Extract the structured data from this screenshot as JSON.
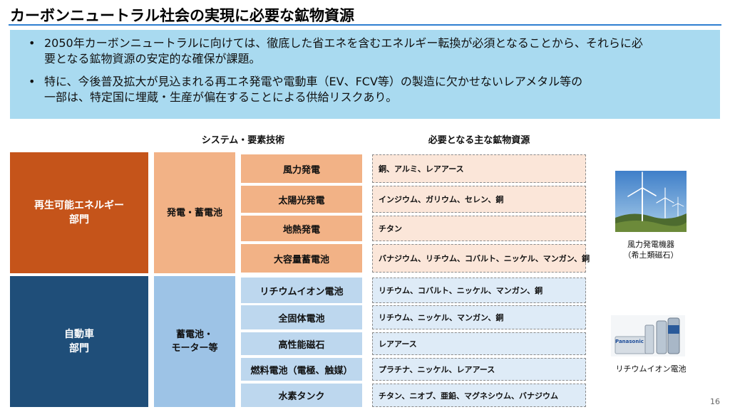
{
  "title": "カーボンニュートラル社会の実現に必要な鉱物資源",
  "bullets": [
    {
      "line1": "2050年カーボンニュートラルに向けては、徹底した省エネを含むエネルギー転換が必須となることから、それらに必",
      "line2": "要となる鉱物資源の安定的な確保が課題。"
    },
    {
      "line1": "特に、今後普及拡大が見込まれる再エネ発電や電動車（EV、FCV等）の製造に欠かせないレアメタル等の",
      "line2": "一部は、特定国に埋蔵・生産が偏在することによる供給リスクあり。"
    }
  ],
  "headers": {
    "system": "システム・要素技術",
    "minerals": "必要となる主な鉱物資源"
  },
  "sectors": {
    "renewable": {
      "line1": "再生可能エネルギー",
      "line2": "部門"
    },
    "automotive": {
      "line1": "自動車",
      "line2": "部門"
    }
  },
  "systems": {
    "renewable": {
      "line1": "発電・蓄電池"
    },
    "automotive": {
      "line1": "蓄電池・",
      "line2": "モーター等"
    }
  },
  "rows": [
    {
      "tech": "風力発電",
      "minerals": "銅、アルミ、レアアース"
    },
    {
      "tech": "太陽光発電",
      "minerals": "インジウム、ガリウム、セレン、銅"
    },
    {
      "tech": "地熱発電",
      "minerals": "チタン"
    },
    {
      "tech": "大容量蓄電池",
      "minerals": "バナジウム、リチウム、コバルト、ニッケル、マンガン、銅"
    },
    {
      "tech": "リチウムイオン電池",
      "minerals": "リチウム、コバルト、ニッケル、マンガン、銅"
    },
    {
      "tech": "全固体電池",
      "minerals": "リチウム、ニッケル、マンガン、銅"
    },
    {
      "tech": "高性能磁石",
      "minerals": "レアアース"
    },
    {
      "tech": "燃料電池（電極、触媒）",
      "minerals": "プラチナ、ニッケル、レアアース"
    },
    {
      "tech": "水素タンク",
      "minerals": "チタン、ニオブ、亜鉛、マグネシウム、バナジウム"
    }
  ],
  "images": {
    "wind": {
      "caption_line1": "風力発電機器",
      "caption_line2": "（希土類磁石）"
    },
    "battery": {
      "caption_line1": "リチウムイオン電池",
      "brand": "Panasonic"
    }
  },
  "page_number": "16",
  "colors": {
    "accent": "#2e7fd0",
    "renewable_dark": "#c5541a",
    "renewable_light": "#f2b286",
    "automotive_dark": "#1f4e79",
    "automotive_light": "#9dc3e6"
  }
}
